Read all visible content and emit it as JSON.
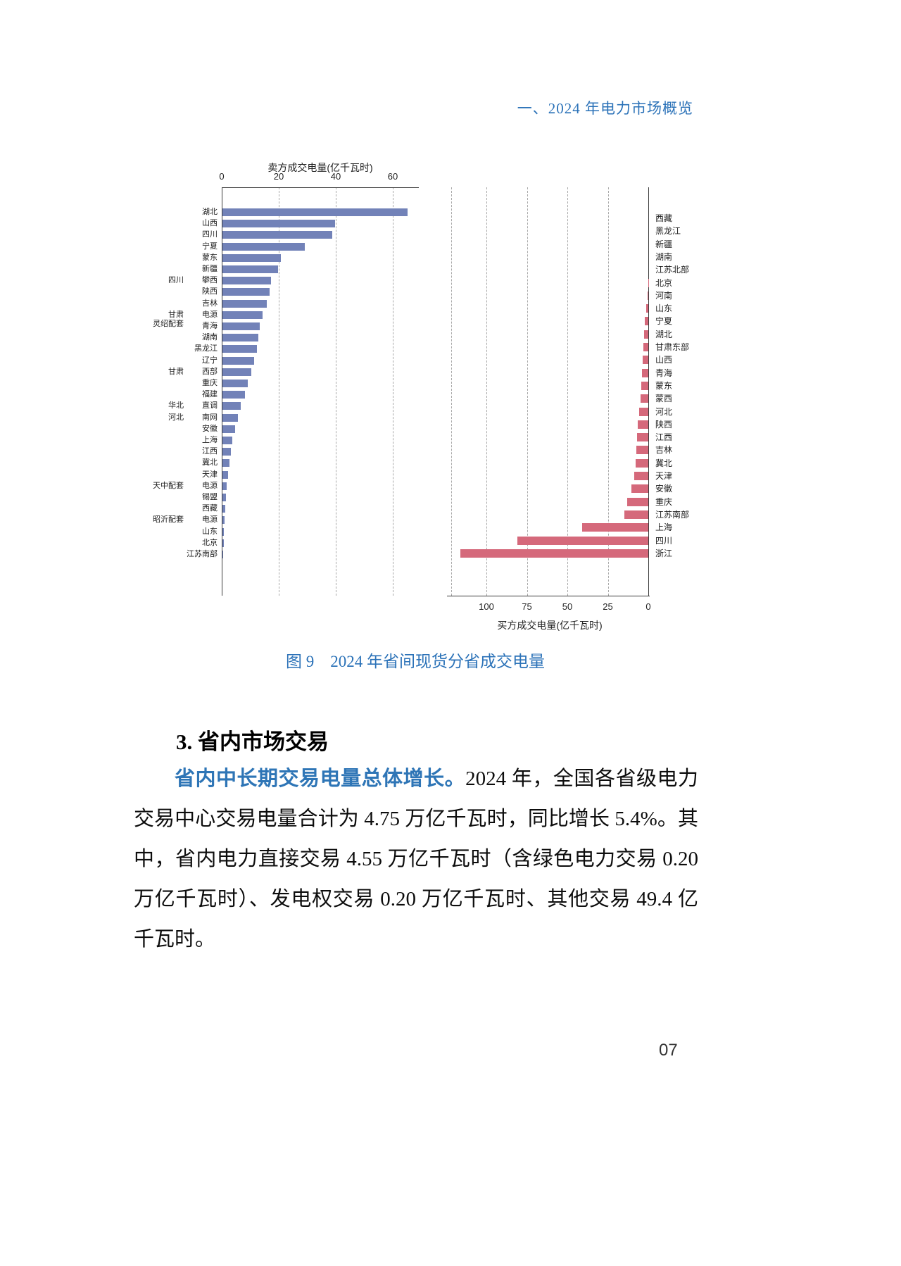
{
  "header": {
    "title": "一、2024 年电力市场概览"
  },
  "figure": {
    "caption": "图 9　2024 年省间现货分省成交电量"
  },
  "section": {
    "heading": "3. 省内市场交易"
  },
  "paragraph": {
    "lead": "省内中长期交易电量总体增长。",
    "body": "2024 年，全国各省级电力交易中心交易电量合计为 4.75 万亿千瓦时，同比增长 5.4%。其中，省内电力直接交易 4.55 万亿千瓦时（含绿色电力交易 0.20 万亿千瓦时）、发电权交易 0.20 万亿千瓦时、其他交易 49.4 亿千瓦时。"
  },
  "footer": {
    "page_number": "07"
  },
  "chart_data": [
    {
      "type": "bar",
      "orientation": "horizontal",
      "title": "卖方成交电量(亿千瓦时)",
      "axis_position": "top",
      "axis_ticks": [
        0,
        20,
        40,
        60
      ],
      "xlim": [
        0,
        69
      ],
      "grid": "dashed-vertical",
      "bar_color": "#7282b8",
      "rows": [
        {
          "label": "湖北",
          "value": 65
        },
        {
          "label": "山西",
          "value": 39.5
        },
        {
          "label": "四川",
          "value": 38.5
        },
        {
          "label": "宁夏",
          "value": 29
        },
        {
          "label": "蒙东",
          "value": 20.5
        },
        {
          "label": "新疆",
          "value": 19.5
        },
        {
          "label": "攀西",
          "outer": "四川",
          "value": 17
        },
        {
          "label": "陕西",
          "value": 16.5
        },
        {
          "label": "吉林",
          "value": 15.5
        },
        {
          "label": "电源",
          "outer": "甘肃\n灵绍配套",
          "value": 14
        },
        {
          "label": "青海",
          "value": 13
        },
        {
          "label": "湖南",
          "value": 12.5
        },
        {
          "label": "黑龙江",
          "value": 12
        },
        {
          "label": "辽宁",
          "value": 11
        },
        {
          "label": "西部",
          "outer": "甘肃",
          "value": 10
        },
        {
          "label": "重庆",
          "value": 9
        },
        {
          "label": "福建",
          "value": 8
        },
        {
          "label": "直调",
          "outer": "华北",
          "value": 6.5
        },
        {
          "label": "南网",
          "outer": "河北",
          "value": 5.5
        },
        {
          "label": "安徽",
          "value": 4.5
        },
        {
          "label": "上海",
          "value": 3.5
        },
        {
          "label": "江西",
          "value": 3
        },
        {
          "label": "冀北",
          "value": 2.5
        },
        {
          "label": "天津",
          "value": 2
        },
        {
          "label": "电源",
          "outer": "天中配套",
          "value": 1.6
        },
        {
          "label": "锡盟",
          "value": 1.3
        },
        {
          "label": "西藏",
          "value": 1
        },
        {
          "label": "电源",
          "outer": "昭沂配套",
          "value": 0.8
        },
        {
          "label": "山东",
          "value": 0.6
        },
        {
          "label": "北京",
          "value": 0.4
        },
        {
          "label": "江苏南部",
          "value": 0.3
        }
      ]
    },
    {
      "type": "bar",
      "orientation": "horizontal",
      "title": "买方成交电量(亿千瓦时)",
      "axis_position": "bottom",
      "axis_ticks": [
        100,
        75,
        50,
        25,
        0
      ],
      "xlim": [
        0,
        121
      ],
      "direction": "right-to-left",
      "grid": "dashed-vertical",
      "bar_color": "#d5697b",
      "rows": [
        {
          "label": "西藏",
          "value": 0
        },
        {
          "label": "黑龙江",
          "value": 0
        },
        {
          "label": "新疆",
          "value": 0
        },
        {
          "label": "湖南",
          "value": 0
        },
        {
          "label": "江苏北部",
          "value": 0
        },
        {
          "label": "北京",
          "value": 0.2
        },
        {
          "label": "河南",
          "value": 0.5
        },
        {
          "label": "山东",
          "value": 1.5
        },
        {
          "label": "宁夏",
          "value": 2
        },
        {
          "label": "湖北",
          "value": 2.5
        },
        {
          "label": "甘肃东部",
          "value": 3
        },
        {
          "label": "山西",
          "value": 3.5
        },
        {
          "label": "青海",
          "value": 4
        },
        {
          "label": "蒙东",
          "value": 4.5
        },
        {
          "label": "蒙西",
          "value": 5
        },
        {
          "label": "河北",
          "value": 5.5
        },
        {
          "label": "陕西",
          "value": 6.5
        },
        {
          "label": "江西",
          "value": 7
        },
        {
          "label": "吉林",
          "value": 7.5
        },
        {
          "label": "冀北",
          "value": 8
        },
        {
          "label": "天津",
          "value": 8.5
        },
        {
          "label": "安徽",
          "value": 10.5
        },
        {
          "label": "重庆",
          "value": 13
        },
        {
          "label": "江苏南部",
          "value": 15
        },
        {
          "label": "上海",
          "value": 41
        },
        {
          "label": "四川",
          "value": 81
        },
        {
          "label": "浙江",
          "value": 116
        }
      ]
    }
  ]
}
